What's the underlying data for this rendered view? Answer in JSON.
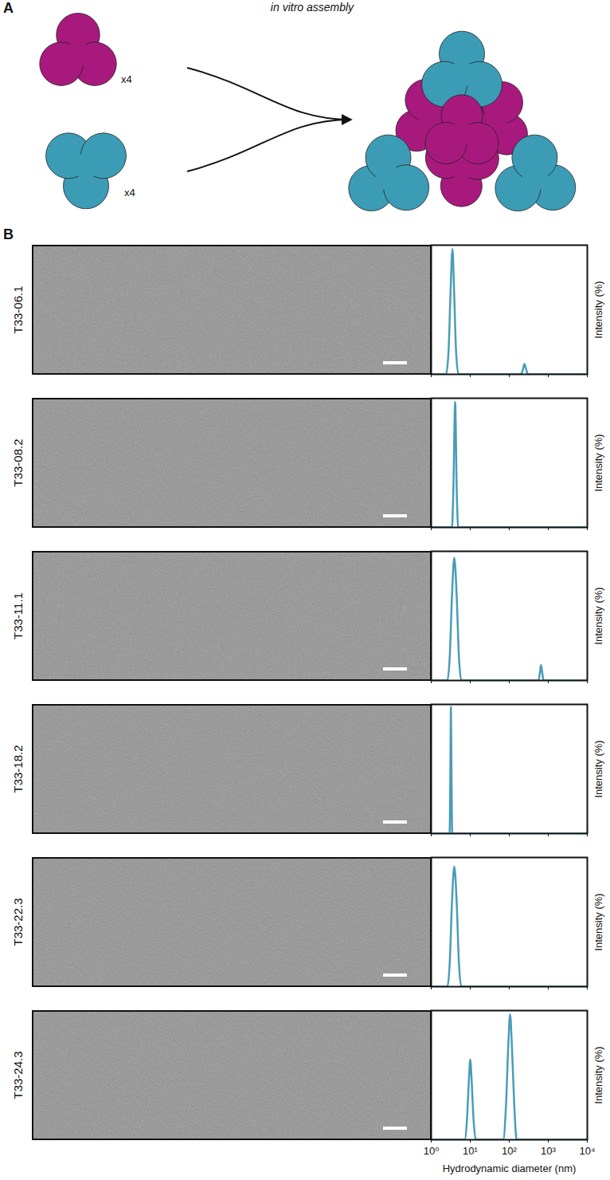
{
  "panel_labels": [
    "A",
    "B"
  ],
  "diagram": {
    "title": "in vitro assembly",
    "components": [
      {
        "color": "#a8197e",
        "count_label": "x4"
      },
      {
        "color": "#3c9cb6",
        "count_label": "x4"
      }
    ]
  },
  "chart_data": [
    {
      "type": "line",
      "title": "T33-06.1",
      "color": "#4a9cb9",
      "log": "x",
      "x": [
        1,
        2.4,
        2.8,
        3.1,
        3.5,
        3.9,
        4.3,
        5.0,
        200,
        225,
        245,
        270,
        300,
        10000
      ],
      "values": [
        0,
        0,
        20,
        60,
        97,
        60,
        20,
        0,
        0,
        4,
        8,
        4,
        0,
        0
      ],
      "xlim": [
        1,
        10000
      ],
      "xticks": [
        {
          "value": 1,
          "label": "10⁰"
        },
        {
          "value": 10,
          "label": "10¹"
        },
        {
          "value": 100,
          "label": "10²"
        },
        {
          "value": 1000,
          "label": "10³"
        },
        {
          "value": 10000,
          "label": "10⁴"
        }
      ],
      "ylim": [
        0,
        100
      ],
      "y_label": "Intensity (%)",
      "tick_labels": false
    },
    {
      "type": "line",
      "title": "T33-08.2",
      "color": "#4a9cb9",
      "log": "x",
      "x": [
        1,
        3.4,
        3.7,
        4.1,
        4.5,
        4.9,
        10000
      ],
      "values": [
        0,
        0,
        30,
        97,
        30,
        0,
        0
      ],
      "xlim": [
        1,
        10000
      ],
      "xticks": [
        {
          "value": 1,
          "label": "10⁰"
        },
        {
          "value": 10,
          "label": "10¹"
        },
        {
          "value": 100,
          "label": "10²"
        },
        {
          "value": 1000,
          "label": "10³"
        },
        {
          "value": 10000,
          "label": "10⁴"
        }
      ],
      "ylim": [
        0,
        100
      ],
      "y_label": "Intensity (%)",
      "tick_labels": false
    },
    {
      "type": "line",
      "title": "T33-11.1",
      "color": "#4a9cb9",
      "log": "x",
      "x": [
        1,
        2.6,
        3.0,
        3.4,
        3.9,
        4.5,
        5.1,
        5.9,
        560,
        610,
        650,
        700,
        760,
        10000
      ],
      "values": [
        0,
        0,
        20,
        65,
        95,
        65,
        20,
        0,
        0,
        6,
        12,
        6,
        0,
        0
      ],
      "xlim": [
        1,
        10000
      ],
      "xticks": [
        {
          "value": 1,
          "label": "10⁰"
        },
        {
          "value": 10,
          "label": "10¹"
        },
        {
          "value": 100,
          "label": "10²"
        },
        {
          "value": 1000,
          "label": "10³"
        },
        {
          "value": 10000,
          "label": "10⁴"
        }
      ],
      "ylim": [
        0,
        100
      ],
      "y_label": "Intensity (%)",
      "tick_labels": false
    },
    {
      "type": "line",
      "title": "T33-18.2",
      "color": "#4a9cb9",
      "log": "x",
      "x": [
        1,
        2.95,
        3.1,
        3.2,
        3.3,
        3.45,
        10000
      ],
      "values": [
        0,
        0,
        50,
        98,
        50,
        0,
        0
      ],
      "xlim": [
        1,
        10000
      ],
      "xticks": [
        {
          "value": 1,
          "label": "10⁰"
        },
        {
          "value": 10,
          "label": "10¹"
        },
        {
          "value": 100,
          "label": "10²"
        },
        {
          "value": 1000,
          "label": "10³"
        },
        {
          "value": 10000,
          "label": "10⁴"
        }
      ],
      "ylim": [
        0,
        100
      ],
      "y_label": "Intensity (%)",
      "tick_labels": false
    },
    {
      "type": "line",
      "title": "T33-22.3",
      "color": "#4a9cb9",
      "log": "x",
      "x": [
        1,
        2.6,
        3.0,
        3.4,
        3.9,
        4.5,
        5.1,
        5.9,
        10000
      ],
      "values": [
        0,
        0,
        20,
        65,
        93,
        65,
        20,
        0,
        0
      ],
      "xlim": [
        1,
        10000
      ],
      "xticks": [
        {
          "value": 1,
          "label": "10⁰"
        },
        {
          "value": 10,
          "label": "10¹"
        },
        {
          "value": 100,
          "label": "10²"
        },
        {
          "value": 1000,
          "label": "10³"
        },
        {
          "value": 10000,
          "label": "10⁴"
        }
      ],
      "ylim": [
        0,
        100
      ],
      "y_label": "Intensity (%)",
      "tick_labels": false
    },
    {
      "type": "line",
      "title": "T33-24.3",
      "color": "#4a9cb9",
      "log": "x",
      "x": [
        1,
        7.2,
        8.4,
        9.2,
        10,
        10.9,
        11.9,
        14,
        70,
        82,
        95,
        105,
        116,
        135,
        155,
        10000
      ],
      "values": [
        0,
        0,
        20,
        45,
        62,
        45,
        20,
        0,
        0,
        25,
        75,
        97,
        75,
        25,
        0,
        0
      ],
      "xlim": [
        1,
        10000
      ],
      "xticks": [
        {
          "value": 1,
          "label": "10⁰"
        },
        {
          "value": 10,
          "label": "10¹"
        },
        {
          "value": 100,
          "label": "10²"
        },
        {
          "value": 1000,
          "label": "10³"
        },
        {
          "value": 10000,
          "label": "10⁴"
        }
      ],
      "ylim": [
        0,
        100
      ],
      "y_label": "Intensity (%)",
      "x_label": "Hydrodynamic diameter (nm)",
      "tick_labels": "x"
    }
  ]
}
